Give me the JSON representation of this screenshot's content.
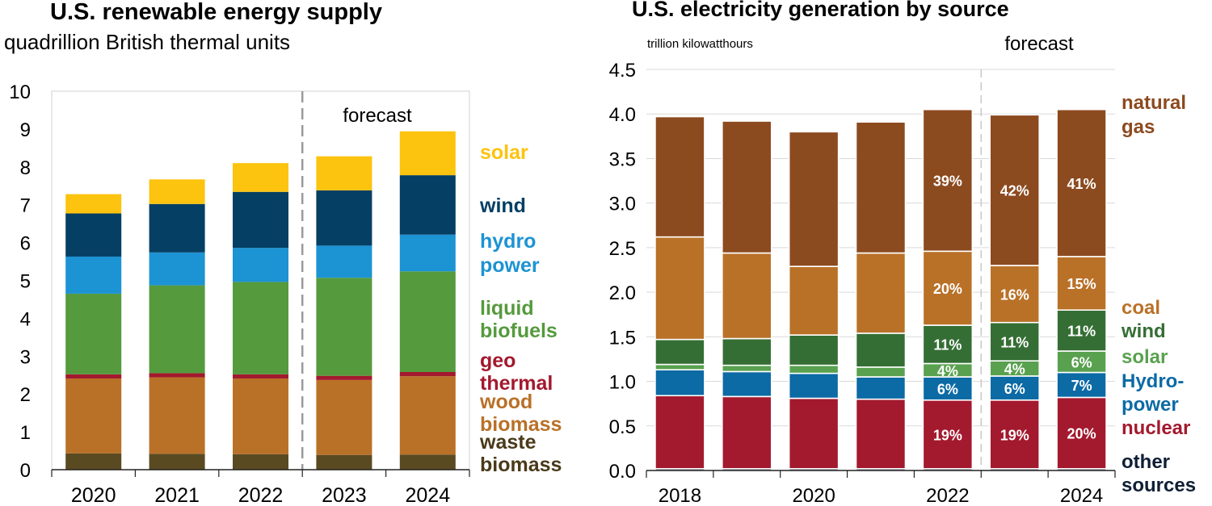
{
  "chart_data": [
    {
      "type": "bar",
      "stacked": true,
      "title": "U.S. renewable energy supply",
      "subtitle": "quadrillion British thermal units",
      "annotation": "forecast",
      "forecast_from": "2023",
      "categories": [
        "2020",
        "2021",
        "2022",
        "2023",
        "2024"
      ],
      "ylim": [
        0,
        10
      ],
      "yticks": [
        0,
        1,
        2,
        3,
        4,
        5,
        6,
        7,
        8,
        9,
        10
      ],
      "grid": false,
      "legend_placement": "right",
      "series": [
        {
          "name": "waste biomass",
          "label_lines": [
            "waste",
            "biomass"
          ],
          "color": "#5a4a22",
          "label_color": "#4a3a1a",
          "values": [
            0.43,
            0.42,
            0.41,
            0.39,
            0.4
          ]
        },
        {
          "name": "wood biomass",
          "label_lines": [
            "wood",
            "biomass"
          ],
          "color": "#b97128",
          "label_color": "#b97128",
          "values": [
            1.98,
            2.02,
            2.0,
            1.98,
            2.07
          ]
        },
        {
          "name": "geo thermal",
          "label_lines": [
            "geo",
            "thermal"
          ],
          "color": "#a3192e",
          "label_color": "#a3192e",
          "values": [
            0.11,
            0.11,
            0.11,
            0.11,
            0.11
          ]
        },
        {
          "name": "liquid biofuels",
          "label_lines": [
            "liquid",
            "biofuels"
          ],
          "color": "#559a3d",
          "label_color": "#559a3d",
          "values": [
            2.13,
            2.32,
            2.44,
            2.59,
            2.66
          ]
        },
        {
          "name": "hydro power",
          "label_lines": [
            "hydro",
            "power"
          ],
          "color": "#1c93d3",
          "label_color": "#1c93d3",
          "values": [
            0.98,
            0.87,
            0.9,
            0.85,
            0.97
          ]
        },
        {
          "name": "wind",
          "label_lines": [
            "wind"
          ],
          "color": "#053f63",
          "label_color": "#053f63",
          "values": [
            1.14,
            1.28,
            1.48,
            1.46,
            1.57
          ]
        },
        {
          "name": "solar",
          "label_lines": [
            "solar"
          ],
          "color": "#fcc30f",
          "label_color": "#fcc30f",
          "values": [
            0.51,
            0.65,
            0.76,
            0.9,
            1.16
          ]
        }
      ]
    },
    {
      "type": "bar",
      "stacked": true,
      "title": "U.S. electricity generation by source",
      "ylabel": "trillion kilowatthours",
      "annotation": "forecast",
      "forecast_from": "2023",
      "categories": [
        "2018",
        "2019",
        "2020",
        "2021",
        "2022",
        "2023",
        "2024"
      ],
      "tick_labels": [
        "2018",
        "",
        "2020",
        "",
        "2022",
        "",
        "2024"
      ],
      "ylim": [
        0,
        4.5
      ],
      "yticks": [
        "0.0",
        "0.5",
        "1.0",
        "1.5",
        "2.0",
        "2.5",
        "3.0",
        "3.5",
        "4.0",
        "4.5"
      ],
      "grid": true,
      "legend_placement": "right",
      "series": [
        {
          "name": "other sources",
          "label_lines": [
            "other",
            "sources"
          ],
          "color": "#0f1f35",
          "label_color": "#0f1f35",
          "values": [
            0.02,
            0.02,
            0.02,
            0.02,
            0.02,
            0.02,
            0.02
          ],
          "pct": [
            "",
            "",
            "",
            "",
            "",
            "",
            ""
          ]
        },
        {
          "name": "nuclear",
          "label_lines": [
            "nuclear"
          ],
          "color": "#a3192e",
          "label_color": "#a3192e",
          "values": [
            0.82,
            0.81,
            0.79,
            0.78,
            0.77,
            0.77,
            0.8
          ],
          "pct": [
            "",
            "",
            "",
            "",
            "19%",
            "19%",
            "20%"
          ]
        },
        {
          "name": "Hydro-power",
          "label_lines": [
            "Hydro-",
            "power"
          ],
          "color": "#0c6aa4",
          "label_color": "#0c6aa4",
          "values": [
            0.29,
            0.28,
            0.28,
            0.25,
            0.26,
            0.27,
            0.28
          ],
          "pct": [
            "",
            "",
            "",
            "",
            "6%",
            "6%",
            "7%"
          ]
        },
        {
          "name": "solar",
          "label_lines": [
            "solar"
          ],
          "color": "#59a14f",
          "label_color": "#59a14f",
          "values": [
            0.06,
            0.07,
            0.09,
            0.11,
            0.15,
            0.17,
            0.24
          ],
          "pct": [
            "",
            "",
            "",
            "",
            "4%",
            "4%",
            "6%"
          ]
        },
        {
          "name": "wind",
          "label_lines": [
            "wind"
          ],
          "color": "#356e34",
          "label_color": "#356e34",
          "values": [
            0.28,
            0.3,
            0.34,
            0.38,
            0.43,
            0.43,
            0.46
          ],
          "pct": [
            "",
            "",
            "",
            "",
            "11%",
            "11%",
            "11%"
          ]
        },
        {
          "name": "coal",
          "label_lines": [
            "coal"
          ],
          "color": "#b97128",
          "label_color": "#b97128",
          "values": [
            1.15,
            0.96,
            0.77,
            0.9,
            0.83,
            0.64,
            0.6
          ],
          "pct": [
            "",
            "",
            "",
            "",
            "20%",
            "16%",
            "15%"
          ]
        },
        {
          "name": "natural gas",
          "label_lines": [
            "natural",
            "gas"
          ],
          "color": "#8c4a1f",
          "label_color": "#8c4a1f",
          "values": [
            1.35,
            1.48,
            1.51,
            1.47,
            1.59,
            1.69,
            1.65
          ],
          "pct": [
            "",
            "",
            "",
            "",
            "39%",
            "42%",
            "41%"
          ]
        }
      ]
    }
  ]
}
